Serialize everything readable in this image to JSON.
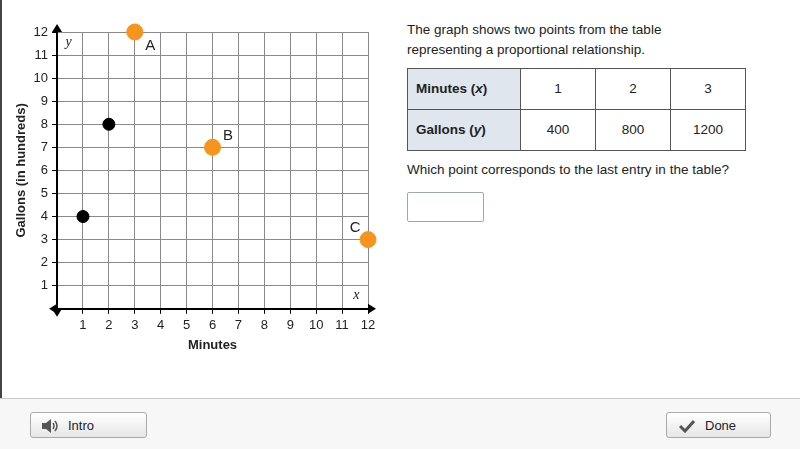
{
  "chart_data": {
    "type": "scatter",
    "x_label": "Minutes",
    "y_label": "Gallons (in hundreds)",
    "xlim": [
      0,
      12
    ],
    "ylim": [
      0,
      12
    ],
    "xticks": [
      1,
      2,
      3,
      4,
      5,
      6,
      7,
      8,
      9,
      10,
      11,
      12
    ],
    "yticks": [
      1,
      2,
      3,
      4,
      5,
      6,
      7,
      8,
      9,
      10,
      11,
      12
    ],
    "grid": true,
    "series": [
      {
        "color": "#000000",
        "x": [
          1,
          2
        ],
        "values": [
          4,
          8
        ]
      },
      {
        "color": "#f7941d",
        "x": [
          3,
          6,
          12
        ],
        "values": [
          12,
          7,
          3
        ]
      }
    ],
    "annotations": [
      {
        "text": "A",
        "x": 3.6,
        "y": 11.4
      },
      {
        "text": "B",
        "x": 6.6,
        "y": 7.5
      },
      {
        "text": "C",
        "x": 11.5,
        "y": 3.5
      },
      {
        "text": "y",
        "x": 0.45,
        "y": 11.55
      },
      {
        "text": "x",
        "x": 11.55,
        "y": 0.6
      }
    ]
  },
  "prompt": [
    "The graph shows two points from the table",
    "representing a proportional relationship."
  ],
  "table": {
    "rows": [
      [
        "Minutes (x)",
        1,
        2,
        3
      ],
      [
        "Gallons (y)",
        400,
        800,
        1200
      ]
    ]
  },
  "question": "Which point corresponds to the last entry in the table?",
  "buttons": [
    "Intro",
    "Done"
  ]
}
